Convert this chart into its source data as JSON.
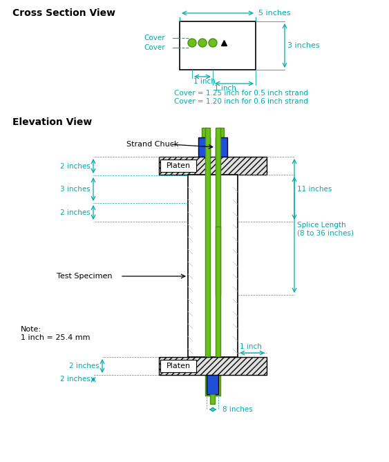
{
  "title_cross": "Cross Section View",
  "title_elevation": "Elevation View",
  "dim_color": "#00AAAA",
  "blue_color": "#1F4FD8",
  "green_color": "#6BBF1E",
  "dark_green": "#4A9010",
  "black": "#000000",
  "white": "#FFFFFF",
  "cover_text1": "Cover = 1.25 inch for 0.5 inch strand",
  "cover_text2": "Cover = 1.20 inch for 0.6 inch strand",
  "strand_chuck_label": "Strand Chuck",
  "test_specimen_label": "Test Specimen",
  "platen_label": "Platen",
  "splice_label": "Splice Length\n(8 to 36 inches)",
  "dim_5inches": "5 inches",
  "dim_3inches": "3 inches",
  "dim_1inch_a": "1 inch",
  "dim_1inch_b": "1 inch",
  "dim_cover": "Cover",
  "dim_2inches_top1": "2 inches",
  "dim_3inches_top": "3 inches",
  "dim_2inches_top2": "2 inches",
  "dim_11inches": "11 inches",
  "dim_2inches_bot1": "2 inches",
  "dim_2inches_bot2": "2 inches",
  "dim_1inch_bot": "1 inch",
  "dim_8inches": "8 inches",
  "note_line1": "Note:",
  "note_line2": "1 inch = 25.4 mm"
}
